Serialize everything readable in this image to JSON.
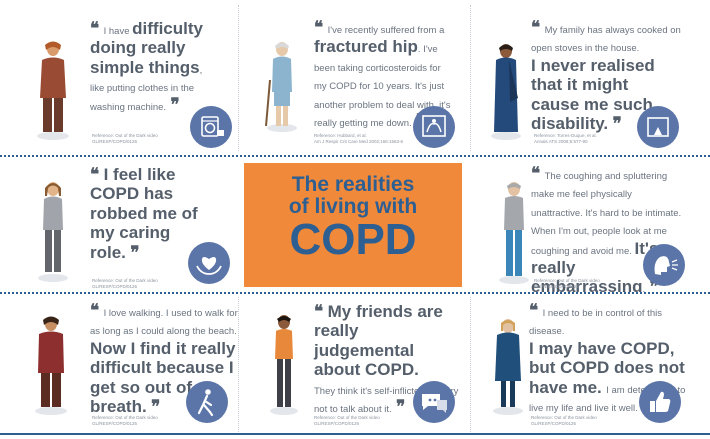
{
  "title": {
    "line1": "The realities",
    "line2": "of living with",
    "line3": "COPD"
  },
  "colors": {
    "accent": "#2d5f93",
    "center_bg": "#f08a3a",
    "icon_bg": "#5b75a8"
  },
  "panels": {
    "p1": {
      "t1": "I have ",
      "t2": "difficulty doing really simple things",
      "t3": ", like putting clothes in the washing machine.",
      "ref1": "Reference: Out of the Dark video",
      "ref2": "GL/RESP/COPD/0126",
      "icon": "washing-machine-icon"
    },
    "p2": {
      "t1": "I've recently suffered from a ",
      "t2": "fractured hip",
      "t3": ". I've been taking corticosteroids for my COPD for 10 years. It's just another problem to deal with, it's really getting me down.",
      "ref1": "Reference: Hubbard, et al.",
      "ref2": "Am J Respir Crit Care Med 2002;166:1563-6",
      "icon": "xray-icon"
    },
    "p3": {
      "t1": "My family has always cooked on open stoves in the house.",
      "t2": "I never realised that it might cause me such disability.",
      "ref1": "Reference: Torres-Duque, et al.",
      "ref2": "Annals ATS 2008;5:577-90",
      "icon": "stove-icon"
    },
    "p4": {
      "t2": "I feel like COPD has robbed me of my caring role.",
      "ref1": "Reference: Out of the Dark video",
      "ref2": "GL/RESP/COPD/0126",
      "icon": "caring-hands-icon"
    },
    "p5": {
      "t1": "The coughing and spluttering make me feel physically unattractive. It's hard to be intimate. When I'm out, people look at me coughing and avoid me. ",
      "t2": "It's really embarrassing",
      "t3": ".",
      "ref1": "Reference: Out of the Dark video",
      "ref2": "GL/RESP/COPD/0126",
      "icon": "coughing-icon"
    },
    "p6": {
      "t1": "I love walking. I used to walk for as long as I could along the beach.",
      "t2": "Now I find it really difficult because I get so out of breath",
      "t3": ".",
      "ref1": "Reference: Out of the Dark video",
      "ref2": "GL/RESP/COPD/0126",
      "icon": "walking-icon"
    },
    "p7": {
      "t2": "My friends are really judgemental about COPD.",
      "t3": "They think it's self-inflicted, so I try not to talk about it.",
      "ref1": "Reference: Out of the Dark video",
      "ref2": "GL/RESP/COPD/0126",
      "icon": "speech-bubble-icon"
    },
    "p8": {
      "t1": "I need to be in control of this disease.",
      "t2": "I may have COPD, but COPD does not have me.",
      "t3": "I am determined to live my life and live it well.",
      "ref1": "Reference: Out of the Dark video",
      "ref2": "GL/RESP/COPD/0126",
      "icon": "thumbs-up-icon"
    }
  }
}
